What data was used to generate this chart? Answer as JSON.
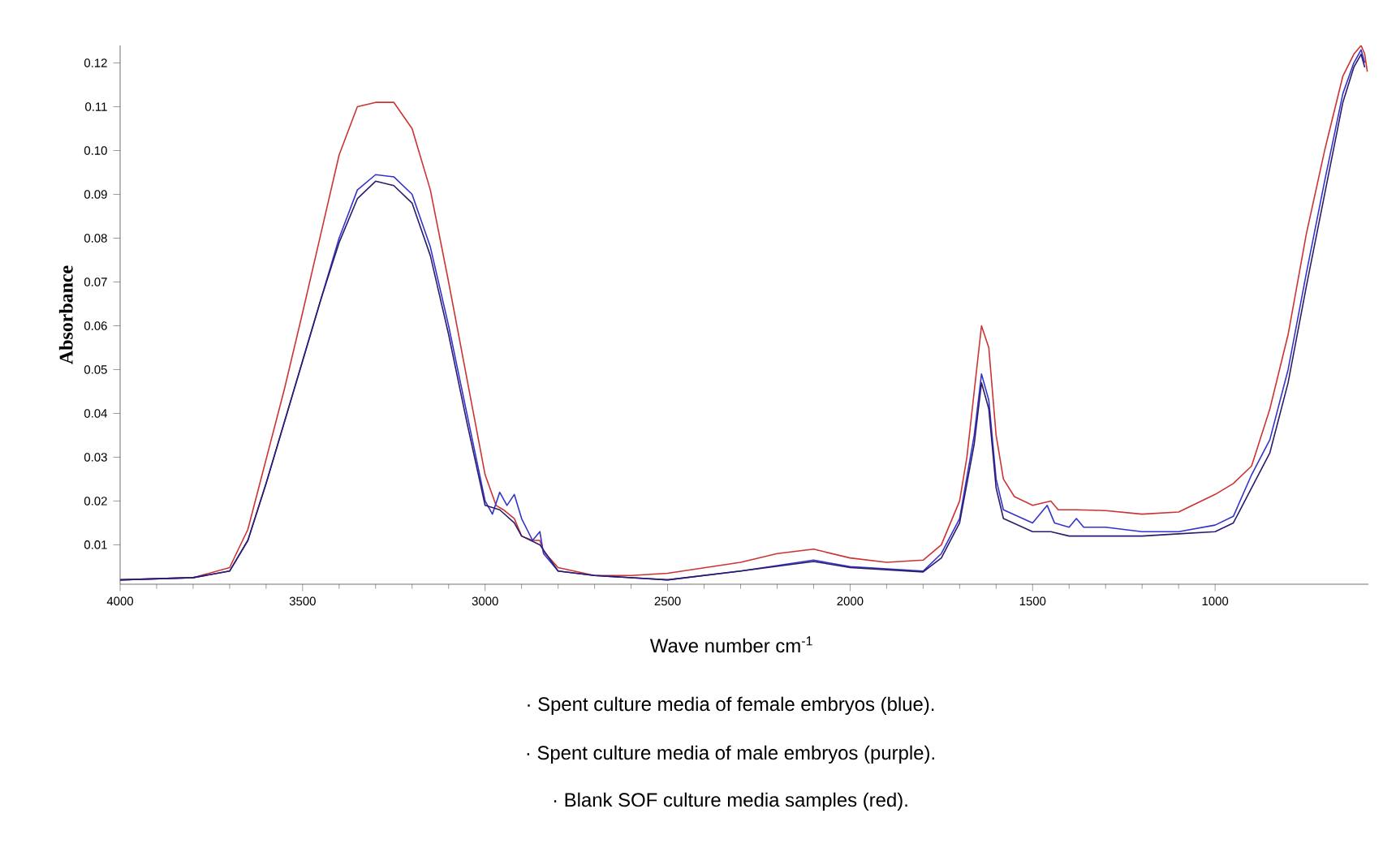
{
  "chart_data": {
    "type": "line",
    "xlabel": "Wave number cm$^{-1}$",
    "ylabel": "Absorbance",
    "xlim": [
      4000,
      580
    ],
    "ylim": [
      0.001,
      0.124
    ],
    "xticks": [
      4000,
      3500,
      3000,
      2500,
      2000,
      1500,
      1000
    ],
    "yticks": [
      0.01,
      0.02,
      0.03,
      0.04,
      0.05,
      0.06,
      0.07,
      0.08,
      0.09,
      {
        "value": 0.1,
        "label": "0.10"
      },
      0.11,
      0.12
    ],
    "annotations": [
      "· Spent culture media of female embryos (blue).",
      "· Spent culture media of male embryos (purple).",
      "· Blank SOF culture media samples (red)."
    ],
    "series": [
      {
        "color": "#cc3333",
        "x": [
          4000,
          3800,
          3700,
          3650,
          3600,
          3550,
          3500,
          3450,
          3400,
          3350,
          3300,
          3250,
          3200,
          3150,
          3100,
          3050,
          3000,
          2970,
          2950,
          2920,
          2900,
          2870,
          2850,
          2840,
          2800,
          2700,
          2600,
          2500,
          2300,
          2200,
          2100,
          2000,
          1900,
          1800,
          1750,
          1700,
          1680,
          1660,
          1640,
          1620,
          1600,
          1580,
          1550,
          1500,
          1450,
          1430,
          1400,
          1380,
          1300,
          1200,
          1100,
          1000,
          950,
          900,
          850,
          800,
          750,
          700,
          650,
          620,
          600,
          590,
          583
        ],
        "values": [
          0.002,
          0.0025,
          0.0048,
          0.0135,
          0.0295,
          0.0455,
          0.063,
          0.081,
          0.099,
          0.11,
          0.111,
          0.111,
          0.105,
          0.091,
          0.07,
          0.048,
          0.026,
          0.019,
          0.018,
          0.016,
          0.012,
          0.011,
          0.011,
          0.0085,
          0.0048,
          0.003,
          0.003,
          0.0035,
          0.006,
          0.008,
          0.009,
          0.007,
          0.006,
          0.0065,
          0.01,
          0.02,
          0.03,
          0.045,
          0.06,
          0.055,
          0.035,
          0.025,
          0.021,
          0.019,
          0.02,
          0.018,
          0.018,
          0.018,
          0.0178,
          0.017,
          0.0175,
          0.0215,
          0.024,
          0.028,
          0.041,
          0.058,
          0.081,
          0.1,
          0.117,
          0.122,
          0.124,
          0.122,
          0.118
        ]
      },
      {
        "color": "#3333cc",
        "x": [
          4000,
          3800,
          3700,
          3650,
          3600,
          3550,
          3500,
          3450,
          3400,
          3350,
          3300,
          3250,
          3200,
          3150,
          3100,
          3050,
          3000,
          2980,
          2960,
          2940,
          2920,
          2900,
          2870,
          2850,
          2840,
          2800,
          2700,
          2500,
          2300,
          2100,
          2000,
          1800,
          1750,
          1700,
          1660,
          1640,
          1620,
          1600,
          1580,
          1500,
          1460,
          1440,
          1400,
          1380,
          1360,
          1300,
          1200,
          1100,
          1000,
          950,
          900,
          850,
          800,
          750,
          700,
          650,
          620,
          600,
          590
        ],
        "values": [
          0.002,
          0.0025,
          0.004,
          0.011,
          0.024,
          0.038,
          0.052,
          0.066,
          0.08,
          0.091,
          0.0945,
          0.094,
          0.09,
          0.078,
          0.06,
          0.04,
          0.02,
          0.017,
          0.022,
          0.019,
          0.0215,
          0.016,
          0.011,
          0.013,
          0.008,
          0.004,
          0.003,
          0.002,
          0.004,
          0.0065,
          0.005,
          0.004,
          0.008,
          0.016,
          0.035,
          0.049,
          0.043,
          0.025,
          0.018,
          0.015,
          0.019,
          0.015,
          0.014,
          0.016,
          0.014,
          0.014,
          0.013,
          0.013,
          0.0145,
          0.0165,
          0.026,
          0.034,
          0.05,
          0.072,
          0.093,
          0.113,
          0.12,
          0.123,
          0.12
        ]
      },
      {
        "color": "#2b1b6b",
        "x": [
          4000,
          3800,
          3700,
          3650,
          3600,
          3550,
          3500,
          3450,
          3400,
          3350,
          3300,
          3250,
          3200,
          3150,
          3100,
          3050,
          3000,
          2960,
          2920,
          2900,
          2850,
          2800,
          2700,
          2500,
          2300,
          2100,
          2000,
          1800,
          1750,
          1700,
          1660,
          1640,
          1620,
          1600,
          1580,
          1500,
          1450,
          1400,
          1300,
          1200,
          1100,
          1000,
          950,
          900,
          850,
          800,
          750,
          700,
          650,
          620,
          600,
          590
        ],
        "values": [
          0.002,
          0.0025,
          0.004,
          0.011,
          0.024,
          0.038,
          0.052,
          0.066,
          0.079,
          0.089,
          0.093,
          0.092,
          0.088,
          0.076,
          0.058,
          0.038,
          0.019,
          0.018,
          0.015,
          0.012,
          0.01,
          0.004,
          0.003,
          0.002,
          0.004,
          0.0062,
          0.0048,
          0.0038,
          0.007,
          0.015,
          0.033,
          0.047,
          0.041,
          0.023,
          0.016,
          0.013,
          0.013,
          0.012,
          0.012,
          0.012,
          0.0125,
          0.013,
          0.015,
          0.023,
          0.031,
          0.047,
          0.069,
          0.09,
          0.111,
          0.119,
          0.122,
          0.119
        ]
      }
    ]
  }
}
